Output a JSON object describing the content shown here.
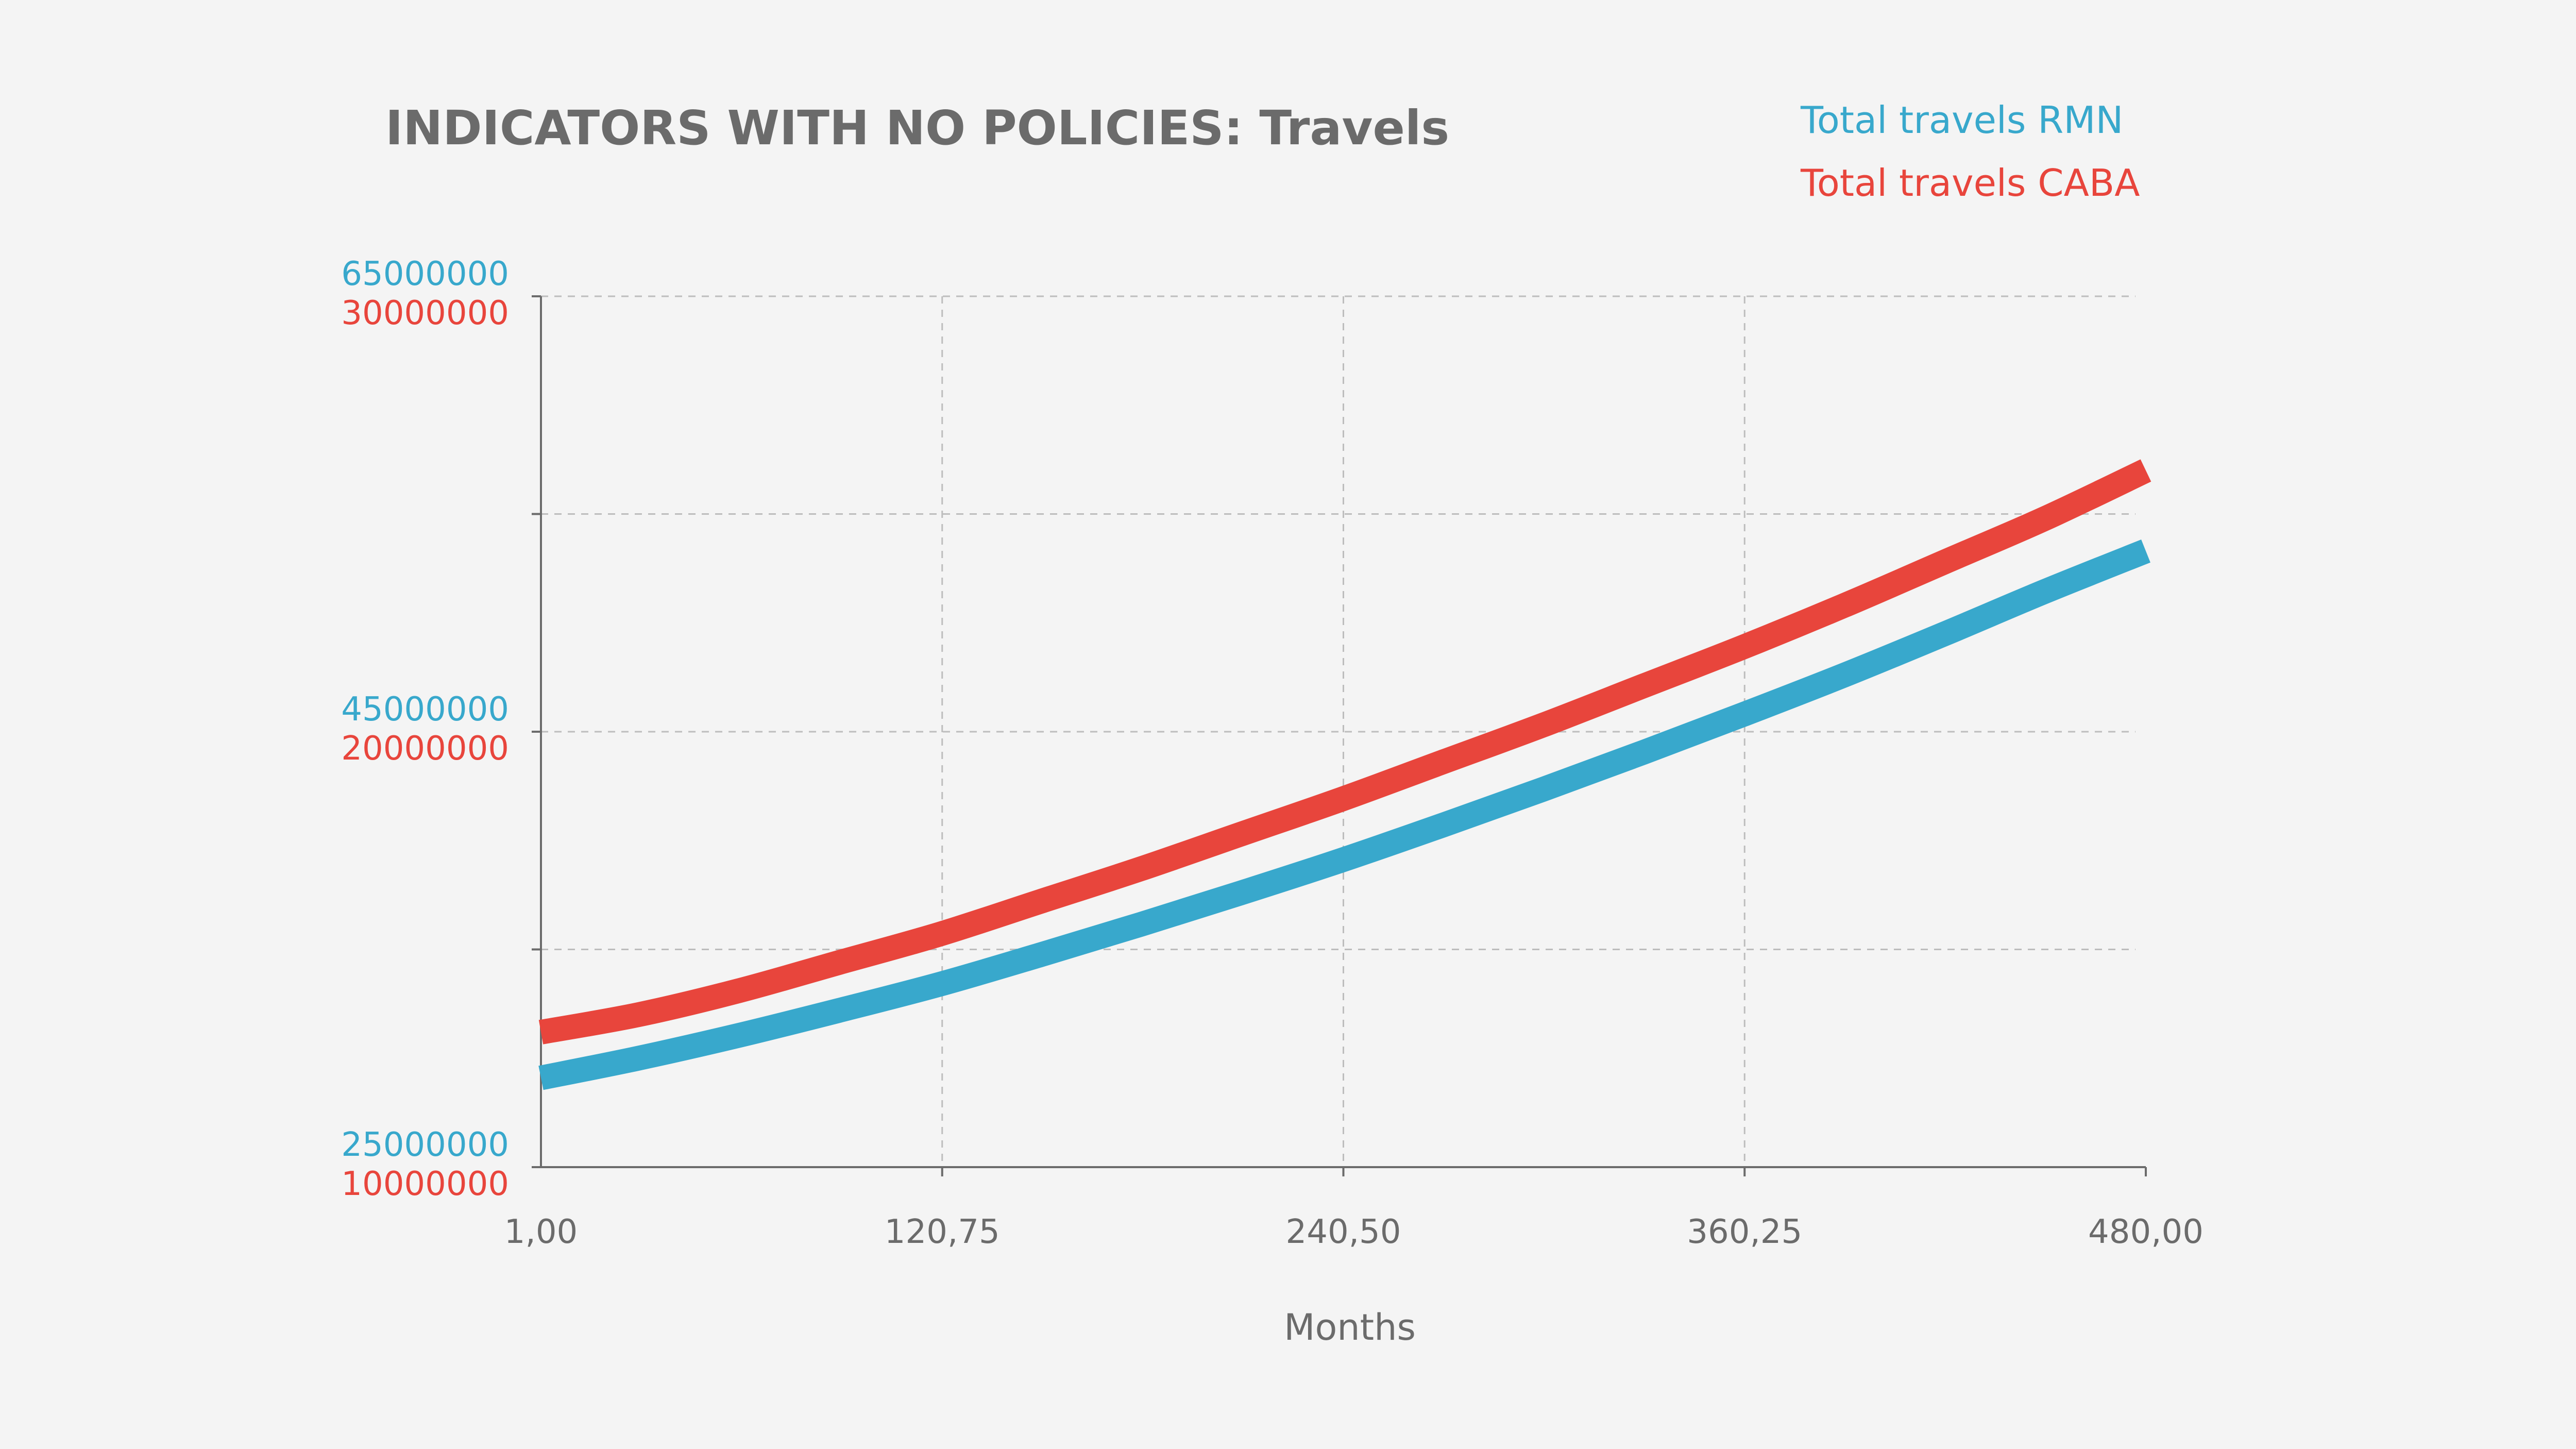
{
  "chart_data": {
    "type": "line",
    "title": "INDICATORS WITH NO POLICIES: Travels",
    "xlabel": "Months",
    "x_tick_labels": [
      "1,00",
      "120,75",
      "240,50",
      "360,25",
      "480,00"
    ],
    "xlim": [
      1,
      480
    ],
    "x_ticks": [
      1,
      120.75,
      240.5,
      360.25,
      480
    ],
    "legend_placement": "top-right",
    "grid": true,
    "y_axes": [
      {
        "id": "rmn",
        "ylim": [
          25000000,
          65000000
        ],
        "tick_labels": [
          "25000000",
          "45000000",
          "65000000"
        ],
        "color": "#38a8cc"
      },
      {
        "id": "caba",
        "ylim": [
          10000000,
          30000000
        ],
        "tick_labels": [
          "10000000",
          "20000000",
          "30000000"
        ],
        "color": "#e8453c"
      }
    ],
    "series": [
      {
        "name": "Total travels RMN",
        "color": "#38a8cc",
        "axis": "rmn",
        "x": [
          1,
          30,
          60,
          90,
          120,
          150,
          180,
          210,
          240,
          270,
          300,
          330,
          360,
          390,
          420,
          450,
          480
        ],
        "y": [
          29100000,
          30000000,
          31050000,
          32200000,
          33400000,
          34750000,
          36150000,
          37600000,
          39100000,
          40700000,
          42350000,
          44050000,
          45800000,
          47600000,
          49500000,
          51450000,
          53300000
        ]
      },
      {
        "name": "Total travels CABA",
        "color": "#e8453c",
        "axis": "caba",
        "x": [
          1,
          30,
          60,
          90,
          120,
          150,
          180,
          210,
          240,
          270,
          300,
          330,
          360,
          390,
          420,
          450,
          480
        ],
        "y": [
          13100000,
          13500000,
          14050000,
          14700000,
          15350000,
          16100000,
          16850000,
          17650000,
          18450000,
          19300000,
          20150000,
          21050000,
          21950000,
          22900000,
          23900000,
          24900000,
          26000000
        ]
      }
    ]
  }
}
